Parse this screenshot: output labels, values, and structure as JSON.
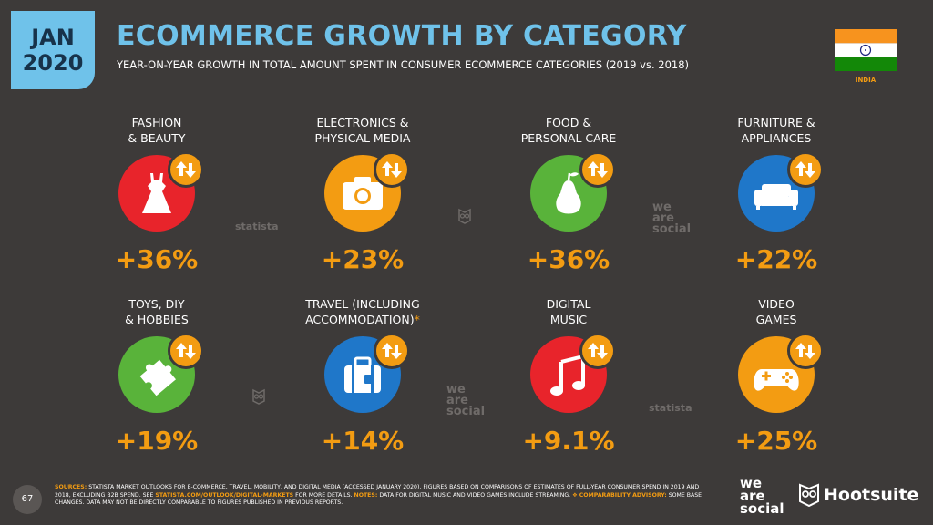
{
  "header": {
    "date_month": "JAN",
    "date_year": "2020",
    "title": "ECOMMERCE GROWTH BY CATEGORY",
    "subtitle": "YEAR-ON-YEAR GROWTH IN TOTAL AMOUNT SPENT IN CONSUMER ECOMMERCE CATEGORIES (2019 vs. 2018)",
    "country": "INDIA"
  },
  "colors": {
    "accent_blue": "#6fc2ea",
    "accent_orange": "#f39c12",
    "background": "#3d3a39"
  },
  "categories": [
    {
      "line1": "FASHION",
      "line2": "& BEAUTY",
      "value": "+36%",
      "color": "#e8242b",
      "icon": "dress-icon"
    },
    {
      "line1": "ELECTRONICS &",
      "line2": "PHYSICAL MEDIA",
      "value": "+23%",
      "color": "#f39c12",
      "icon": "camera-icon"
    },
    {
      "line1": "FOOD &",
      "line2": "PERSONAL CARE",
      "value": "+36%",
      "color": "#59b33a",
      "icon": "pear-icon"
    },
    {
      "line1": "FURNITURE &",
      "line2": "APPLIANCES",
      "value": "+22%",
      "color": "#1f77c9",
      "icon": "sofa-icon"
    },
    {
      "line1": "TOYS, DIY",
      "line2": "& HOBBIES",
      "value": "+19%",
      "color": "#59b33a",
      "icon": "puzzle-icon"
    },
    {
      "line1": "TRAVEL (INCLUDING",
      "line2": "ACCOMMODATION)",
      "line2_suffix": "*",
      "value": "+14%",
      "color": "#1f77c9",
      "icon": "suitcase-icon"
    },
    {
      "line1": "DIGITAL",
      "line2": "MUSIC",
      "value": "+9.1%",
      "color": "#e8242b",
      "icon": "music-note-icon"
    },
    {
      "line1": "VIDEO",
      "line2": "GAMES",
      "value": "+25%",
      "color": "#f39c12",
      "icon": "gamepad-icon"
    }
  ],
  "watermarks": {
    "statista": "statista",
    "we": "we",
    "are": "are",
    "social": "social"
  },
  "footer": {
    "page_number": "67",
    "sources_label": "SOURCES:",
    "sources_text_1": "STATISTA MARKET OUTLOOKS FOR E-COMMERCE, TRAVEL, MOBILITY, AND DIGITAL MEDIA (ACCESSED JANUARY 2020). FIGURES BASED ON COMPARISONS OF ESTIMATES OF FULL-YEAR CONSUMER SPEND IN 2019 AND 2018, EXCLUDING B2B SPEND. SEE",
    "sources_link": "STATISTA.COM/OUTLOOK/DIGITAL-MARKETS",
    "sources_text_2": "FOR MORE DETAILS.",
    "notes_label": "NOTES:",
    "notes_text": "DATA FOR DIGITAL MUSIC AND VIDEO GAMES INCLUDE STREAMING.",
    "advisory_label": "❖ COMPARABILITY ADVISORY:",
    "advisory_text": "SOME BASE CHANGES. DATA MAY NOT BE DIRECTLY COMPARABLE TO FIGURES PUBLISHED IN PREVIOUS REPORTS.",
    "brand_we": "we",
    "brand_are": "are",
    "brand_social": "social",
    "brand_hootsuite": "Hootsuite"
  }
}
